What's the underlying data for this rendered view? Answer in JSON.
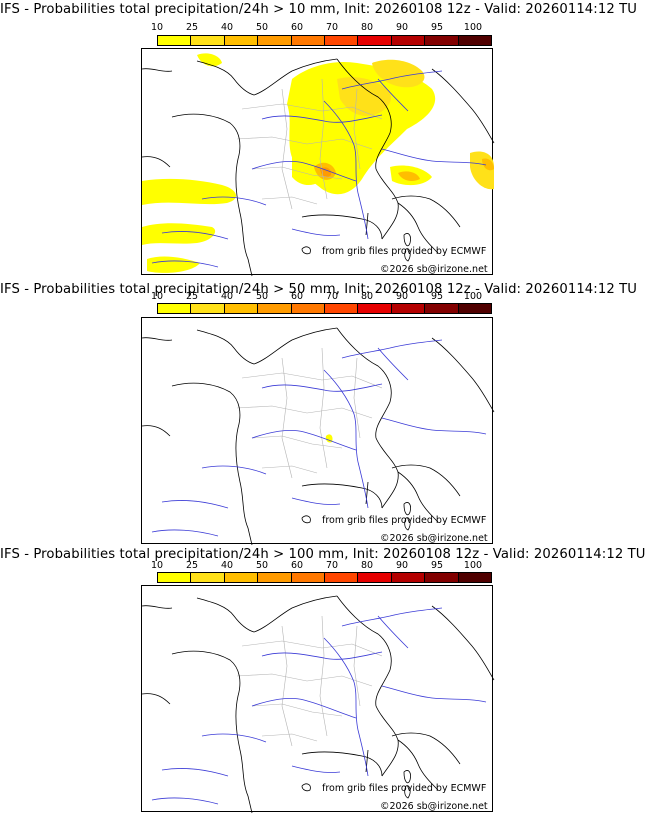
{
  "colors": {
    "scale": [
      "#ffff00",
      "#ffe119",
      "#ffbe00",
      "#ff9b00",
      "#ff7800",
      "#ff4600",
      "#e60000",
      "#b40000",
      "#820000",
      "#500000"
    ],
    "rivers": "#3b3bd6",
    "borders": "#000000",
    "regions": "#b4b4b4"
  },
  "scale_labels": [
    "10",
    "25",
    "40",
    "50",
    "60",
    "70",
    "80",
    "90",
    "95",
    "100"
  ],
  "panels": [
    {
      "title": "IFS - Probabilities total precipitation/24h > 10 mm, Init: 20260108 12z - Valid: 20260114:12 TU",
      "source": "from grib files provided by ECMWF",
      "copyright": "©2026 sb@irizone.net"
    },
    {
      "title": "IFS - Probabilities total precipitation/24h > 50 mm, Init: 20260108 12z - Valid: 20260114:12 TU",
      "source": "from grib files provided by ECMWF",
      "copyright": "©2026 sb@irizone.net"
    },
    {
      "title": "IFS - Probabilities total precipitation/24h > 100 mm, Init: 20260108 12z - Valid: 20260114:12 TU",
      "source": "from grib files provided by ECMWF",
      "copyright": "©2026 sb@irizone.net"
    }
  ]
}
